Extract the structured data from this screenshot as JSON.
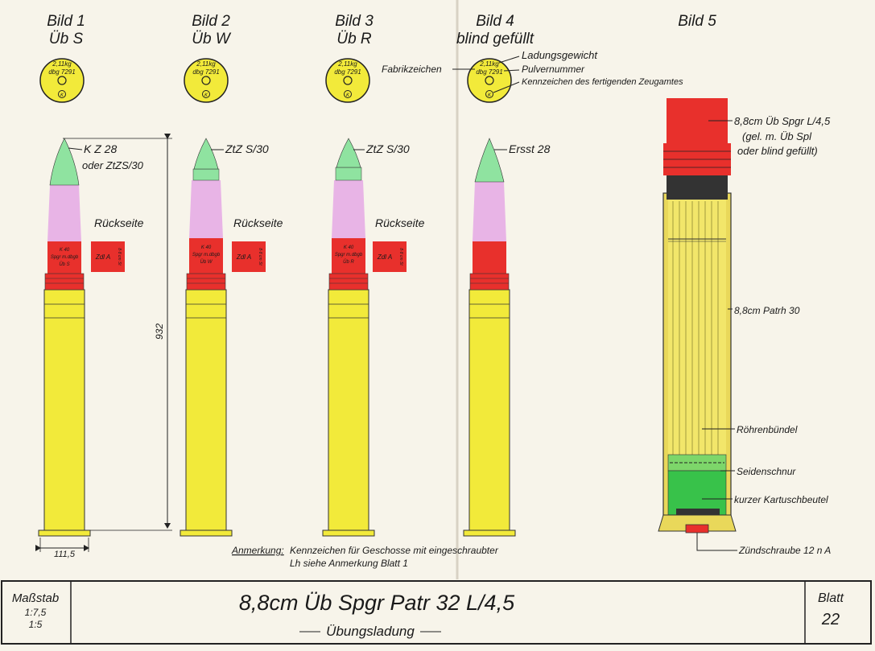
{
  "figures": [
    {
      "title": "Bild 1",
      "subtitle": "Üb S",
      "disk": {
        "line1": "2,11kg",
        "line2": "dbg 7291",
        "mark": "K"
      },
      "callout": "K Z 28",
      "callout2": "oder ZtZS/30",
      "back_label": "Rückseite",
      "band_text": [
        "K 40",
        "Spgr m.dbgb",
        "Üb S"
      ],
      "tag_text": "Zdl A",
      "tag_side": "8·8 cm St"
    },
    {
      "title": "Bild 2",
      "subtitle": "Üb W",
      "disk": {
        "line1": "2,11kg",
        "line2": "dbg 7291",
        "mark": "K"
      },
      "callout": "ZtZ S/30",
      "back_label": "Rückseite",
      "band_text": [
        "K 40",
        "Spgr m.dbgb",
        "Üb W"
      ],
      "tag_text": "Zdl A",
      "tag_side": "8·8 cm St"
    },
    {
      "title": "Bild 3",
      "subtitle": "Üb R",
      "disk": {
        "line1": "2,11kg",
        "line2": "dbg 7291",
        "mark": "K"
      },
      "callout": "ZtZ S/30",
      "back_label": "Rückseite",
      "band_text": [
        "K 40",
        "Spgr m.dbgb",
        "Üb R"
      ],
      "tag_text": "Zdl A",
      "tag_side": "8·8 cm St"
    },
    {
      "title": "Bild 4",
      "subtitle": "blind gefüllt",
      "disk": {
        "line1": "2,11kg",
        "line2": "dbg 7291",
        "mark": "K"
      },
      "callout": "Ersst 28"
    },
    {
      "title": "Bild 5"
    }
  ],
  "disk_labels": {
    "fabrikzeichen": "Fabrikzeichen",
    "ladungsgewicht": "Ladungsgewicht",
    "pulvernummer": "Pulvernummer",
    "kennzeichen": "Kennzeichen des fertigenden Zeugamtes"
  },
  "dimensions": {
    "length": "932",
    "rim": "111,5"
  },
  "cutaway_labels": {
    "l1": "8,8cm Üb Spgr L/4,5",
    "l2": "(gel. m. Üb Spl",
    "l3": "oder blind gefüllt)",
    "patrh": "8,8cm Patrh 30",
    "roehren": "Röhrenbündel",
    "seiden": "Seidenschnur",
    "beutel": "kurzer Kartuschbeutel",
    "zuend": "Zündschraube 12 n A"
  },
  "note": {
    "label": "Anmerkung:",
    "line1": "Kennzeichen für Geschosse mit eingeschraubter",
    "line2": "Lh siehe Anmerkung Blatt 1"
  },
  "title_block": {
    "scale_label": "Maßstab",
    "scale1": "1:7,5",
    "scale2": "1:5",
    "title": "8,8cm Üb Spgr Patr 32 L/4,5",
    "subtitle": "Übungsladung",
    "sheet_label": "Blatt",
    "sheet_no": "22"
  },
  "colors": {
    "yellow": "#f2ea3a",
    "red": "#e8302c",
    "pink": "#e8b4e6",
    "green": "#8fe3a0",
    "brass": "#e9d85a",
    "kart_green": "#38c24a"
  }
}
